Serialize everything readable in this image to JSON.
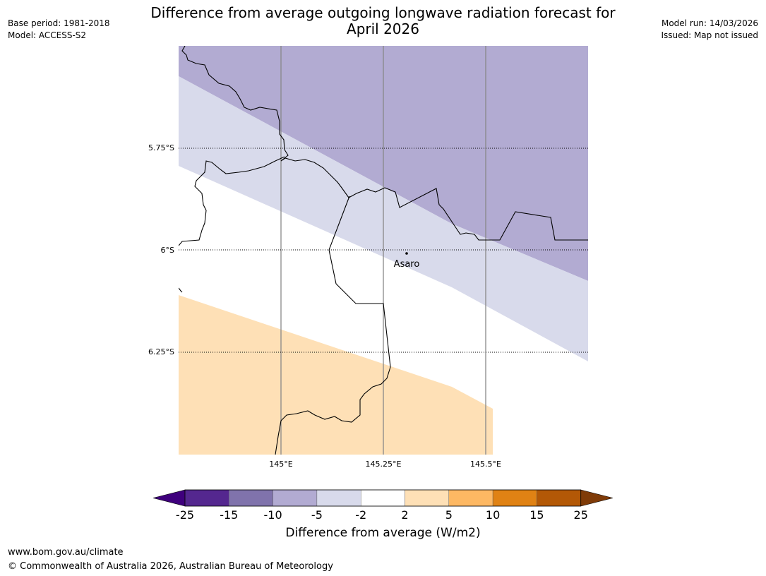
{
  "header": {
    "title_line1": "Difference from average outgoing longwave radiation forecast for",
    "title_line2": "April 2026",
    "base_period": "Base period: 1981-2018",
    "model": "Model: ACCESS-S2",
    "model_run": "Model run: 14/03/2026",
    "issued": "Issued: Map not issued"
  },
  "map": {
    "lat_labels": [
      "5.75°S",
      "6°S",
      "6.25°S"
    ],
    "lon_labels": [
      "145°E",
      "145.25°E",
      "145.5°E"
    ],
    "place": "Asaro"
  },
  "colorbar": {
    "title": "Difference from average (W/m2)",
    "tick_labels": [
      "-25",
      "-15",
      "-10",
      "-5",
      "-2",
      "2",
      "5",
      "10",
      "15",
      "25"
    ],
    "colors": [
      "#3f007d",
      "#54278f",
      "#8073ac",
      "#b2abd2",
      "#d8daeb",
      "#ffffff",
      "#fee0b6",
      "#fdb863",
      "#e08214",
      "#b35806",
      "#7f3b08"
    ]
  },
  "footer": {
    "url": "www.bom.gov.au/climate",
    "copyright": "© Commonwealth of Australia 2026, Australian Bureau of Meteorology"
  }
}
